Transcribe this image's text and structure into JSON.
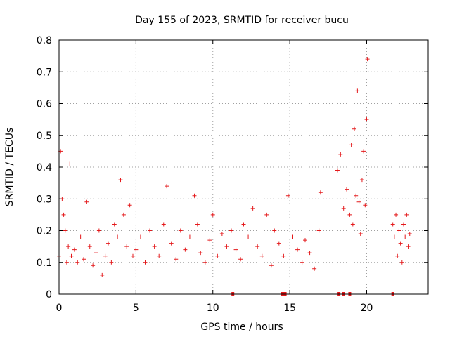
{
  "chart_data": {
    "type": "scatter",
    "title": "Day 155 of 2023, SRMTID for receiver bucu",
    "xlabel": "GPS time / hours",
    "ylabel": "SRMTID / TECUs",
    "xlim": [
      0,
      24
    ],
    "ylim": [
      0,
      0.8
    ],
    "xticks": [
      0,
      5,
      10,
      15,
      20
    ],
    "yticks": [
      0,
      0.1,
      0.2,
      0.3,
      0.4,
      0.5,
      0.6,
      0.7,
      0.8
    ],
    "xtick_labels": [
      "0",
      "5",
      "10",
      "15",
      "20"
    ],
    "ytick_labels": [
      "0",
      "0.1",
      "0.2",
      "0.3",
      "0.4",
      "0.5",
      "0.6",
      "0.7",
      "0.8"
    ],
    "grid": true,
    "marker": "+",
    "color": "#e41a1c",
    "series": [
      {
        "name": "SRMTID",
        "x": [
          0.0,
          0.1,
          0.2,
          0.3,
          0.4,
          0.5,
          0.6,
          0.7,
          0.8,
          1.0,
          1.2,
          1.4,
          1.6,
          1.8,
          2.0,
          2.2,
          2.4,
          2.6,
          2.8,
          3.0,
          3.2,
          3.4,
          3.6,
          3.8,
          4.0,
          4.2,
          4.4,
          4.6,
          4.8,
          5.0,
          5.3,
          5.6,
          5.9,
          6.2,
          6.5,
          6.8,
          7.0,
          7.3,
          7.6,
          7.9,
          8.2,
          8.5,
          8.8,
          9.0,
          9.2,
          9.5,
          9.8,
          10.0,
          10.3,
          10.6,
          10.9,
          11.2,
          11.5,
          11.8,
          12.0,
          12.3,
          12.6,
          12.9,
          13.2,
          13.5,
          13.8,
          14.0,
          14.3,
          14.6,
          14.9,
          15.2,
          15.5,
          15.8,
          16.0,
          16.3,
          16.6,
          16.9,
          17.0,
          18.1,
          18.3,
          18.5,
          18.7,
          18.9,
          19.0,
          19.1,
          19.2,
          19.3,
          19.4,
          19.5,
          19.6,
          19.7,
          19.8,
          19.9,
          20.0,
          20.05,
          21.7,
          21.8,
          21.9,
          22.0,
          22.1,
          22.2,
          22.3,
          22.4,
          22.5,
          22.6,
          22.7,
          22.8
        ],
        "y": [
          0.12,
          0.45,
          0.3,
          0.25,
          0.2,
          0.1,
          0.15,
          0.41,
          0.12,
          0.14,
          0.1,
          0.18,
          0.11,
          0.29,
          0.15,
          0.09,
          0.13,
          0.2,
          0.06,
          0.12,
          0.16,
          0.1,
          0.22,
          0.18,
          0.36,
          0.25,
          0.15,
          0.28,
          0.12,
          0.14,
          0.18,
          0.1,
          0.2,
          0.15,
          0.12,
          0.22,
          0.34,
          0.16,
          0.11,
          0.2,
          0.14,
          0.18,
          0.31,
          0.22,
          0.13,
          0.1,
          0.17,
          0.25,
          0.12,
          0.19,
          0.15,
          0.2,
          0.14,
          0.11,
          0.22,
          0.18,
          0.27,
          0.15,
          0.12,
          0.25,
          0.09,
          0.2,
          0.16,
          0.12,
          0.31,
          0.18,
          0.14,
          0.1,
          0.17,
          0.13,
          0.08,
          0.2,
          0.32,
          0.39,
          0.44,
          0.27,
          0.33,
          0.25,
          0.47,
          0.22,
          0.52,
          0.31,
          0.64,
          0.29,
          0.19,
          0.36,
          0.45,
          0.28,
          0.55,
          0.74,
          0.22,
          0.18,
          0.25,
          0.12,
          0.2,
          0.16,
          0.1,
          0.22,
          0.18,
          0.25,
          0.15,
          0.19
        ]
      }
    ],
    "zero_markers_x": [
      11.3,
      14.5,
      14.6,
      14.7,
      18.2,
      18.5,
      18.9,
      21.7
    ]
  }
}
